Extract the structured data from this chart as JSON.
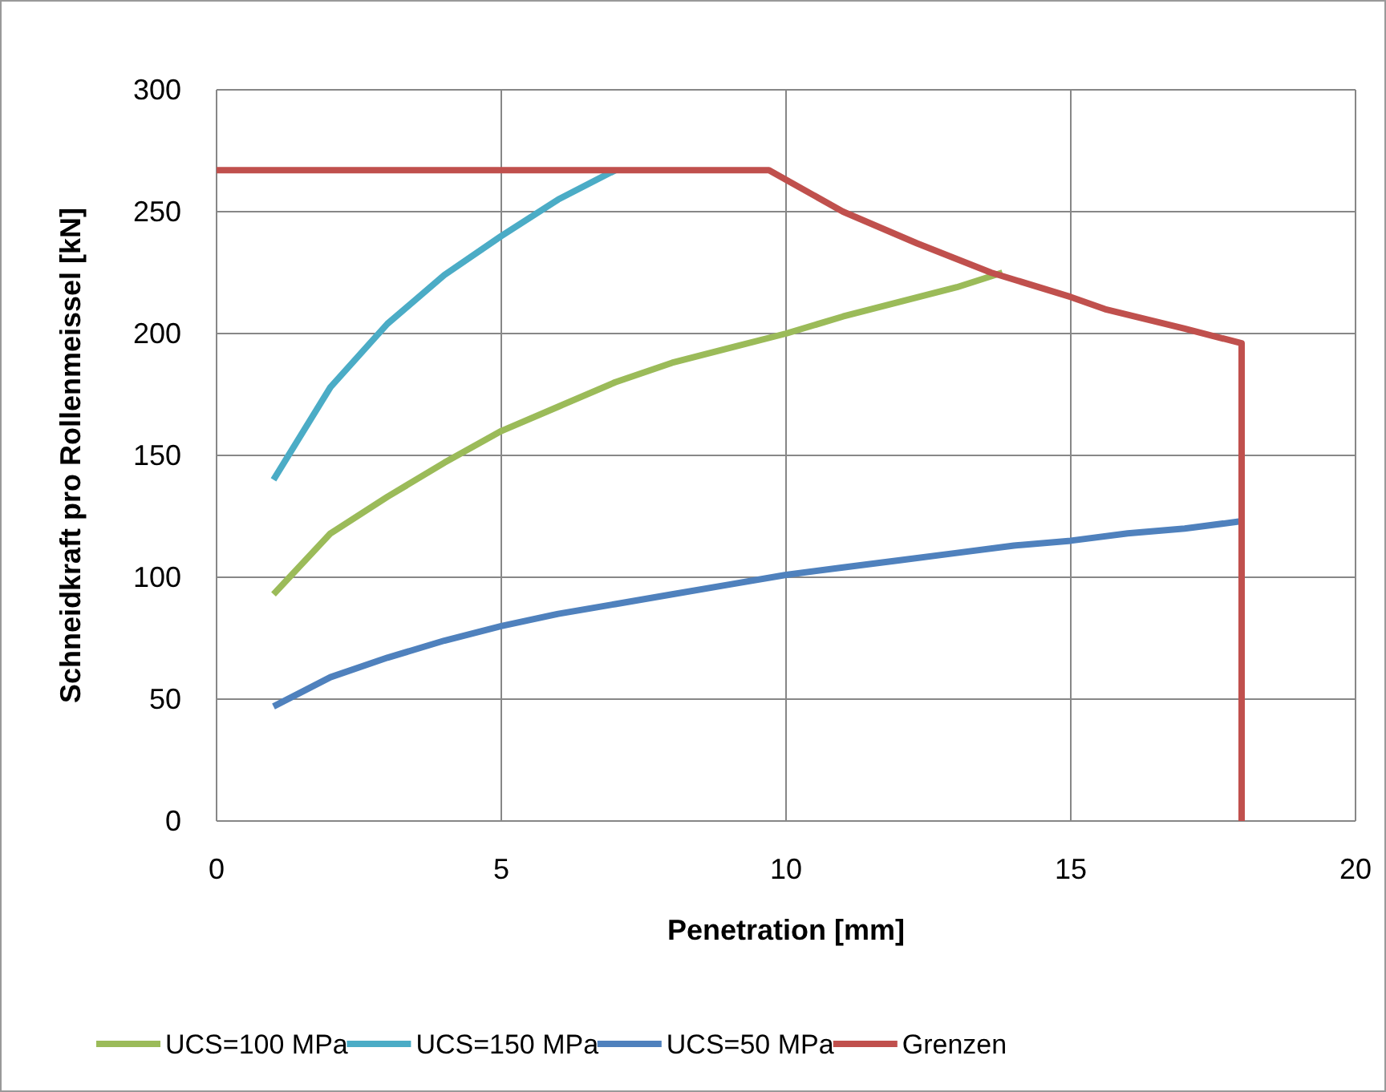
{
  "chart_data": {
    "type": "line",
    "xlabel": "Penetration [mm]",
    "ylabel": "Schneidkraft pro Rollenmeissel [kN]",
    "xlim": [
      0,
      20
    ],
    "xticks": [
      0,
      5,
      10,
      15,
      20
    ],
    "ylim": [
      0,
      300
    ],
    "yticks": [
      0,
      50,
      100,
      150,
      200,
      250,
      300
    ],
    "grid": true,
    "legend": "bottom",
    "marker": "none",
    "line_style": "solid",
    "series": [
      {
        "name": "UCS=100 MPa",
        "color": "#9bbb59",
        "x": [
          1,
          2,
          3,
          4,
          5,
          6,
          7,
          8,
          9,
          10,
          11,
          12,
          13,
          13.8
        ],
        "values": [
          93,
          118,
          133,
          147,
          160,
          170,
          180,
          188,
          194,
          200,
          207,
          213,
          219,
          225
        ]
      },
      {
        "name": "UCS=150 MPa",
        "color": "#4bacc6",
        "x": [
          1,
          2,
          3,
          4,
          5,
          6,
          7
        ],
        "values": [
          140,
          178,
          204,
          224,
          240,
          255,
          267
        ]
      },
      {
        "name": "UCS=50 MPa",
        "color": "#4f81bd",
        "x": [
          1,
          2,
          3,
          4,
          5,
          6,
          7,
          8,
          9,
          10,
          11,
          12,
          13,
          14,
          15,
          16,
          17,
          18
        ],
        "values": [
          47,
          59,
          67,
          74,
          80,
          85,
          89,
          93,
          97,
          101,
          104,
          107,
          110,
          113,
          115,
          118,
          120,
          123
        ]
      },
      {
        "name": "Grenzen",
        "color": "#c0504d",
        "x": [
          0,
          9.7,
          11,
          12.3,
          13.6,
          15,
          15.6,
          17,
          18,
          18
        ],
        "values": [
          267,
          267,
          250,
          237,
          225,
          215,
          210,
          202,
          196,
          0
        ]
      }
    ]
  }
}
